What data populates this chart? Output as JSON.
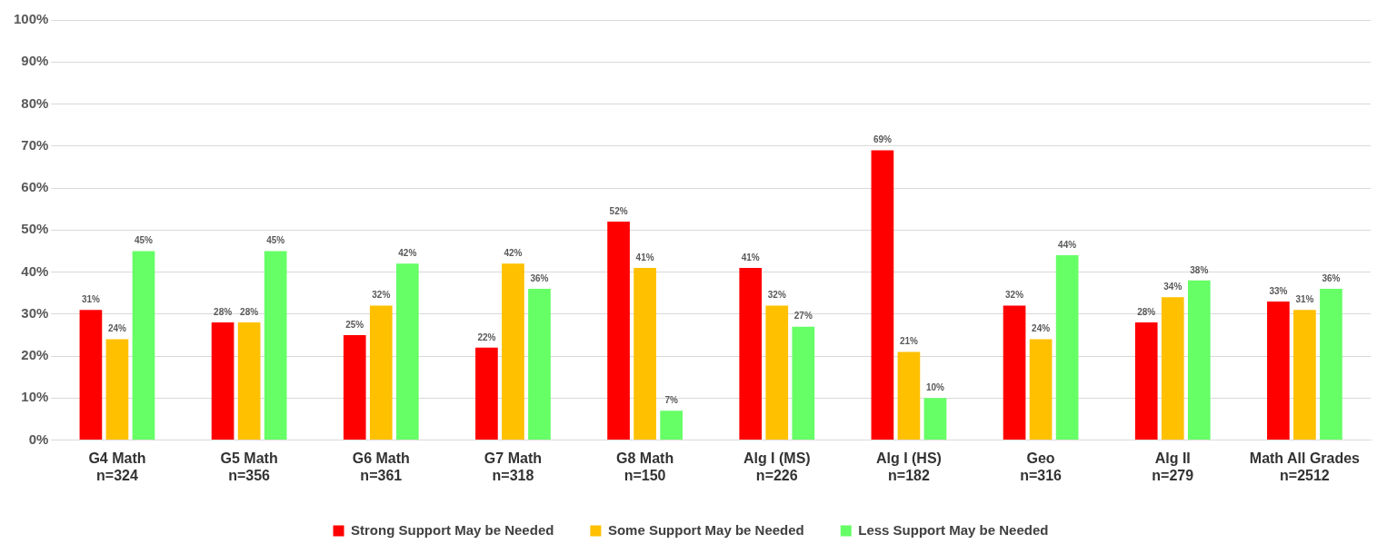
{
  "chart_data": {
    "type": "bar",
    "categories": [
      "G4 Math\nn=324",
      "G5 Math\nn=356",
      "G6 Math\nn=361",
      "G7 Math\nn=318",
      "G8 Math\nn=150",
      "Alg I (MS)\nn=226",
      "Alg I (HS)\nn=182",
      "Geo\nn=316",
      "Alg II\nn=279",
      "Math All Grades\nn=2512"
    ],
    "series": [
      {
        "name": "Strong Support May be Needed",
        "color": "#ff0000",
        "values": [
          31,
          28,
          25,
          22,
          52,
          41,
          69,
          32,
          28,
          33
        ],
        "value_labels": [
          "31%",
          "28%",
          "25%",
          "22%",
          "52%",
          "41%",
          "69%",
          "32%",
          "28%",
          "33%"
        ]
      },
      {
        "name": "Some Support May be Needed",
        "color": "#ffc000",
        "values": [
          24,
          28,
          32,
          42,
          41,
          32,
          21,
          24,
          34,
          31
        ],
        "value_labels": [
          "24%",
          "28%",
          "32%",
          "42%",
          "41%",
          "32%",
          "21%",
          "24%",
          "34%",
          "31%"
        ]
      },
      {
        "name": "Less Support May be Needed",
        "color": "#66ff66",
        "values": [
          45,
          45,
          42,
          36,
          7,
          27,
          10,
          44,
          38,
          36
        ],
        "value_labels": [
          "45%",
          "45%",
          "42%",
          "36%",
          "7%",
          "27%",
          "10%",
          "44%",
          "38%",
          "36%"
        ]
      }
    ],
    "ylim": [
      0,
      100
    ],
    "yticks": [
      {
        "value": 0,
        "label": "0%"
      },
      {
        "value": 10,
        "label": "10%"
      },
      {
        "value": 20,
        "label": "20%"
      },
      {
        "value": 30,
        "label": "30%"
      },
      {
        "value": 40,
        "label": "40%"
      },
      {
        "value": 50,
        "label": "50%"
      },
      {
        "value": 60,
        "label": "60%"
      },
      {
        "value": 70,
        "label": "70%"
      },
      {
        "value": 80,
        "label": "80%"
      },
      {
        "value": 90,
        "label": "90%"
      },
      {
        "value": 100,
        "label": "100%"
      }
    ],
    "grid": "y",
    "legend": "bottom"
  }
}
